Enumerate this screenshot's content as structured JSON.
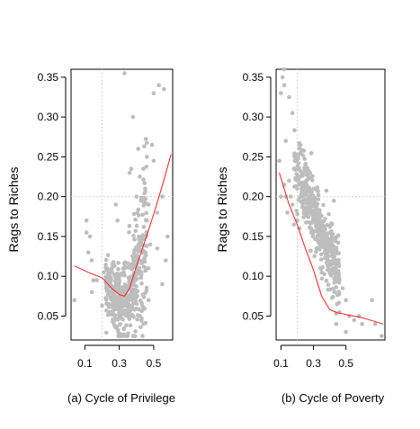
{
  "chart_data": [
    {
      "type": "scatter",
      "title": "",
      "caption": "(a) Cycle of Privilege",
      "xlabel": "",
      "ylabel": "Rags to Riches",
      "xlim": [
        0.02,
        0.61
      ],
      "ylim": [
        0.02,
        0.36
      ],
      "x_ticks": [
        0.1,
        0.3,
        0.5
      ],
      "x_tick_labels": [
        "0.1",
        "0.3",
        "0.5"
      ],
      "y_ticks": [
        0.05,
        0.1,
        0.15,
        0.2,
        0.25,
        0.3,
        0.35
      ],
      "y_tick_labels": [
        "0.05",
        "0.10",
        "0.15",
        "0.20",
        "0.25",
        "0.30",
        "0.35"
      ],
      "guides": {
        "vline": 0.2,
        "hline": 0.2
      },
      "point_color": "#bdbdbd",
      "fit_color": "#ff2020",
      "cloud": {
        "n": 450,
        "xmin": 0.22,
        "xmax": 0.46,
        "center": 0.34
      },
      "series": [
        {
          "points": [
            [
              0.04,
              0.07
            ],
            [
              0.11,
              0.17
            ],
            [
              0.11,
              0.155
            ],
            [
              0.12,
              0.13
            ],
            [
              0.13,
              0.15
            ],
            [
              0.14,
              0.12
            ],
            [
              0.15,
              0.095
            ],
            [
              0.14,
              0.08
            ],
            [
              0.17,
              0.095
            ],
            [
              0.2,
              0.063
            ],
            [
              0.21,
              0.105
            ],
            [
              0.28,
              0.19
            ],
            [
              0.29,
              0.17
            ],
            [
              0.33,
              0.355
            ],
            [
              0.36,
              0.23
            ],
            [
              0.37,
              0.235
            ],
            [
              0.38,
              0.3
            ],
            [
              0.41,
              0.26
            ],
            [
              0.4,
              0.2
            ],
            [
              0.44,
              0.235
            ],
            [
              0.46,
              0.25
            ],
            [
              0.47,
              0.19
            ],
            [
              0.49,
              0.265
            ],
            [
              0.5,
              0.245
            ],
            [
              0.5,
              0.33
            ],
            [
              0.52,
              0.135
            ],
            [
              0.53,
              0.34
            ],
            [
              0.55,
              0.09
            ],
            [
              0.56,
              0.335
            ],
            [
              0.58,
              0.15
            ],
            [
              0.57,
              0.12
            ],
            [
              0.55,
              0.2
            ],
            [
              0.52,
              0.18
            ],
            [
              0.48,
              0.14
            ],
            [
              0.47,
              0.11
            ],
            [
              0.45,
              0.21
            ],
            [
              0.43,
              0.15
            ],
            [
              0.46,
              0.17
            ],
            [
              0.42,
              0.05
            ],
            [
              0.44,
              0.04
            ],
            [
              0.47,
              0.07
            ]
          ]
        }
      ],
      "fit_line": [
        [
          0.04,
          0.113
        ],
        [
          0.12,
          0.105
        ],
        [
          0.2,
          0.098
        ],
        [
          0.26,
          0.084
        ],
        [
          0.3,
          0.077
        ],
        [
          0.33,
          0.075
        ],
        [
          0.36,
          0.085
        ],
        [
          0.4,
          0.113
        ],
        [
          0.45,
          0.145
        ],
        [
          0.5,
          0.178
        ],
        [
          0.55,
          0.214
        ],
        [
          0.6,
          0.253
        ]
      ]
    },
    {
      "type": "scatter",
      "title": "",
      "caption": "(b) Cycle of Poverty",
      "xlabel": "",
      "ylabel": "Rags to Riches",
      "xlim": [
        0.07,
        0.74
      ],
      "ylim": [
        0.02,
        0.36
      ],
      "x_ticks": [
        0.1,
        0.3,
        0.5
      ],
      "x_tick_labels": [
        "0.1",
        "0.3",
        "0.5"
      ],
      "y_ticks": [
        0.05,
        0.1,
        0.15,
        0.2,
        0.25,
        0.3,
        0.35
      ],
      "y_tick_labels": [
        "0.05",
        "0.10",
        "0.15",
        "0.20",
        "0.25",
        "0.30",
        "0.35"
      ],
      "guides": {
        "vline": 0.2,
        "hline": 0.2
      },
      "point_color": "#bdbdbd",
      "fit_color": "#ff2020",
      "cloud": {
        "n": 470,
        "xmin": 0.18,
        "xmax": 0.46
      },
      "series": [
        {
          "points": [
            [
              0.09,
              0.245
            ],
            [
              0.11,
              0.35
            ],
            [
              0.12,
              0.36
            ],
            [
              0.1,
              0.33
            ],
            [
              0.12,
              0.34
            ],
            [
              0.15,
              0.325
            ],
            [
              0.17,
              0.305
            ],
            [
              0.13,
              0.27
            ],
            [
              0.22,
              0.265
            ],
            [
              0.25,
              0.24
            ],
            [
              0.1,
              0.2
            ],
            [
              0.12,
              0.215
            ],
            [
              0.15,
              0.22
            ],
            [
              0.14,
              0.18
            ],
            [
              0.17,
              0.19
            ],
            [
              0.18,
              0.165
            ],
            [
              0.2,
              0.17
            ],
            [
              0.22,
              0.2
            ],
            [
              0.13,
              0.2
            ],
            [
              0.16,
              0.2
            ],
            [
              0.5,
              0.07
            ],
            [
              0.52,
              0.05
            ],
            [
              0.55,
              0.045
            ],
            [
              0.58,
              0.05
            ],
            [
              0.6,
              0.04
            ],
            [
              0.66,
              0.07
            ],
            [
              0.68,
              0.04
            ],
            [
              0.72,
              0.025
            ],
            [
              0.48,
              0.085
            ],
            [
              0.5,
              0.03
            ],
            [
              0.44,
              0.04
            ],
            [
              0.46,
              0.055
            ]
          ]
        }
      ],
      "fit_line": [
        [
          0.09,
          0.23
        ],
        [
          0.15,
          0.19
        ],
        [
          0.2,
          0.165
        ],
        [
          0.25,
          0.135
        ],
        [
          0.3,
          0.108
        ],
        [
          0.35,
          0.075
        ],
        [
          0.4,
          0.058
        ],
        [
          0.45,
          0.054
        ],
        [
          0.5,
          0.052
        ],
        [
          0.6,
          0.048
        ],
        [
          0.73,
          0.04
        ]
      ]
    }
  ]
}
